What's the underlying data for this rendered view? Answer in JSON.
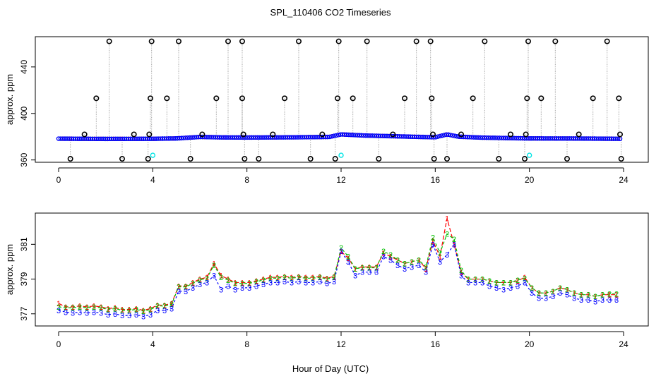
{
  "title": "SPL_110406  CO2 Timeseries",
  "xlabel": "Hour of Day (UTC)",
  "colors": {
    "s1": "#ff0000",
    "s2": "#00c000",
    "s3": "#0000ff",
    "cyan": "#00e5e5",
    "raw": "#000000",
    "drop": "#999999"
  },
  "chart_data": [
    {
      "type": "scatter",
      "name": "top-panel",
      "ylabel": "approx. ppm",
      "xlim": [
        0,
        24
      ],
      "ylim": [
        358,
        466
      ],
      "x_ticks": [
        "0",
        "4",
        "8",
        "12",
        "16",
        "20",
        "24"
      ],
      "y_ticks": [
        "360",
        "400",
        "440"
      ],
      "baseline": [
        [
          0,
          378.3
        ],
        [
          2,
          378.1
        ],
        [
          4,
          378.2
        ],
        [
          5,
          378.5
        ],
        [
          6,
          379.8
        ],
        [
          7,
          379.4
        ],
        [
          8,
          379.3
        ],
        [
          10,
          379.5
        ],
        [
          11.5,
          379.8
        ],
        [
          12,
          382
        ],
        [
          13,
          381
        ],
        [
          14,
          380.5
        ],
        [
          15,
          380
        ],
        [
          16,
          379.5
        ],
        [
          16.5,
          382
        ],
        [
          17,
          380
        ],
        [
          18,
          379.2
        ],
        [
          20,
          378.5
        ],
        [
          22,
          378.4
        ],
        [
          24,
          378.2
        ]
      ],
      "spikes": [
        {
          "x": 0.5,
          "y": 361
        },
        {
          "x": 1.1,
          "y": 382
        },
        {
          "x": 1.6,
          "y": 413
        },
        {
          "x": 2.15,
          "y": 462
        },
        {
          "x": 2.7,
          "y": 361
        },
        {
          "x": 3.2,
          "y": 382
        },
        {
          "x": 3.8,
          "y": 361
        },
        {
          "x": 3.85,
          "y": 382
        },
        {
          "x": 3.9,
          "y": 413
        },
        {
          "x": 3.95,
          "y": 462
        },
        {
          "x": 4.6,
          "y": 413
        },
        {
          "x": 5.1,
          "y": 462
        },
        {
          "x": 5.6,
          "y": 361
        },
        {
          "x": 6.1,
          "y": 382
        },
        {
          "x": 6.7,
          "y": 413
        },
        {
          "x": 7.2,
          "y": 462
        },
        {
          "x": 7.8,
          "y": 462
        },
        {
          "x": 7.8,
          "y": 413
        },
        {
          "x": 7.85,
          "y": 382
        },
        {
          "x": 7.9,
          "y": 361
        },
        {
          "x": 8.5,
          "y": 361
        },
        {
          "x": 9.1,
          "y": 382
        },
        {
          "x": 9.6,
          "y": 413
        },
        {
          "x": 10.2,
          "y": 462
        },
        {
          "x": 10.7,
          "y": 361
        },
        {
          "x": 11.2,
          "y": 382
        },
        {
          "x": 11.75,
          "y": 361
        },
        {
          "x": 11.85,
          "y": 413
        },
        {
          "x": 11.9,
          "y": 462
        },
        {
          "x": 12.5,
          "y": 413
        },
        {
          "x": 13.1,
          "y": 462
        },
        {
          "x": 13.6,
          "y": 361
        },
        {
          "x": 14.2,
          "y": 382
        },
        {
          "x": 14.7,
          "y": 413
        },
        {
          "x": 15.2,
          "y": 462
        },
        {
          "x": 15.8,
          "y": 462
        },
        {
          "x": 15.85,
          "y": 413
        },
        {
          "x": 15.9,
          "y": 382
        },
        {
          "x": 15.95,
          "y": 361
        },
        {
          "x": 16.5,
          "y": 361
        },
        {
          "x": 17.1,
          "y": 382
        },
        {
          "x": 17.6,
          "y": 413
        },
        {
          "x": 18.1,
          "y": 462
        },
        {
          "x": 18.7,
          "y": 361
        },
        {
          "x": 19.2,
          "y": 382
        },
        {
          "x": 19.8,
          "y": 361
        },
        {
          "x": 19.85,
          "y": 382
        },
        {
          "x": 19.9,
          "y": 413
        },
        {
          "x": 19.95,
          "y": 462
        },
        {
          "x": 20.5,
          "y": 413
        },
        {
          "x": 21.1,
          "y": 462
        },
        {
          "x": 21.6,
          "y": 361
        },
        {
          "x": 22.1,
          "y": 382
        },
        {
          "x": 22.7,
          "y": 413
        },
        {
          "x": 23.3,
          "y": 462
        },
        {
          "x": 23.8,
          "y": 413
        },
        {
          "x": 23.85,
          "y": 382
        },
        {
          "x": 23.9,
          "y": 361
        }
      ],
      "cyan_points": [
        {
          "x": 4.0,
          "y": 364
        },
        {
          "x": 12.0,
          "y": 364
        },
        {
          "x": 20.0,
          "y": 364
        }
      ]
    },
    {
      "type": "line",
      "name": "bottom-panel",
      "ylabel": "approx. ppm",
      "xlim": [
        0,
        24
      ],
      "ylim": [
        376.3,
        382.8
      ],
      "x_ticks": [
        "0",
        "4",
        "8",
        "12",
        "16",
        "20",
        "24"
      ],
      "y_ticks": [
        "377",
        "379",
        "381"
      ],
      "series": [
        {
          "name": "1",
          "label": "1",
          "x": [
            0,
            0.3,
            0.6,
            0.9,
            1.2,
            1.5,
            1.8,
            2.1,
            2.4,
            2.7,
            3.0,
            3.3,
            3.6,
            3.9,
            4.2,
            4.5,
            4.8,
            5.1,
            5.4,
            5.7,
            6.0,
            6.3,
            6.6,
            6.9,
            7.2,
            7.5,
            7.8,
            8.1,
            8.4,
            8.7,
            9.0,
            9.3,
            9.6,
            9.9,
            10.2,
            10.5,
            10.8,
            11.1,
            11.4,
            11.7,
            12.0,
            12.3,
            12.6,
            12.9,
            13.2,
            13.5,
            13.8,
            14.1,
            14.4,
            14.7,
            15.0,
            15.3,
            15.6,
            15.9,
            16.2,
            16.5,
            16.8,
            17.1,
            17.4,
            17.7,
            18.0,
            18.3,
            18.6,
            18.9,
            19.2,
            19.5,
            19.8,
            20.1,
            20.4,
            20.7,
            21.0,
            21.3,
            21.6,
            21.9,
            22.2,
            22.5,
            22.8,
            23.1,
            23.4,
            23.7
          ],
          "values": [
            377.6,
            377.4,
            377.4,
            377.45,
            377.4,
            377.45,
            377.4,
            377.3,
            377.35,
            377.25,
            377.25,
            377.3,
            377.2,
            377.3,
            377.5,
            377.5,
            377.6,
            378.6,
            378.6,
            378.8,
            379.0,
            379.1,
            379.9,
            379.2,
            379.0,
            378.8,
            378.8,
            378.8,
            378.9,
            379.0,
            379.1,
            379.1,
            379.15,
            379.1,
            379.15,
            379.1,
            379.1,
            379.15,
            379.05,
            379.15,
            380.6,
            380.2,
            379.6,
            379.7,
            379.7,
            379.7,
            380.5,
            380.3,
            380.1,
            379.9,
            380.0,
            380.1,
            379.6,
            381.2,
            380.3,
            382.5,
            381.0,
            379.4,
            379.0,
            379.0,
            379.0,
            378.9,
            378.8,
            378.8,
            378.8,
            378.9,
            379.1,
            378.5,
            378.2,
            378.2,
            378.3,
            378.5,
            378.4,
            378.2,
            378.1,
            378.1,
            378.0,
            378.1,
            378.1,
            378.1
          ]
        },
        {
          "name": "2",
          "label": "2",
          "x": [
            0,
            0.3,
            0.6,
            0.9,
            1.2,
            1.5,
            1.8,
            2.1,
            2.4,
            2.7,
            3.0,
            3.3,
            3.6,
            3.9,
            4.2,
            4.5,
            4.8,
            5.1,
            5.4,
            5.7,
            6.0,
            6.3,
            6.6,
            6.9,
            7.2,
            7.5,
            7.8,
            8.1,
            8.4,
            8.7,
            9.0,
            9.3,
            9.6,
            9.9,
            10.2,
            10.5,
            10.8,
            11.1,
            11.4,
            11.7,
            12.0,
            12.3,
            12.6,
            12.9,
            13.2,
            13.5,
            13.8,
            14.1,
            14.4,
            14.7,
            15.0,
            15.3,
            15.6,
            15.9,
            16.2,
            16.5,
            16.8,
            17.1,
            17.4,
            17.7,
            18.0,
            18.3,
            18.6,
            18.9,
            19.2,
            19.5,
            19.8,
            20.1,
            20.4,
            20.7,
            21.0,
            21.3,
            21.6,
            21.9,
            22.2,
            22.5,
            22.8,
            23.1,
            23.4,
            23.7
          ],
          "values": [
            377.4,
            377.35,
            377.35,
            377.4,
            377.35,
            377.4,
            377.35,
            377.25,
            377.3,
            377.2,
            377.2,
            377.25,
            377.15,
            377.25,
            377.45,
            377.45,
            377.55,
            378.55,
            378.55,
            378.75,
            378.95,
            379.05,
            379.8,
            379.1,
            378.95,
            378.75,
            378.75,
            378.75,
            378.85,
            378.95,
            379.05,
            379.05,
            379.1,
            379.05,
            379.1,
            379.05,
            379.05,
            379.1,
            379.0,
            379.1,
            380.8,
            380.3,
            379.6,
            379.65,
            379.65,
            379.65,
            380.6,
            380.4,
            380.1,
            379.9,
            380.0,
            380.1,
            379.7,
            381.4,
            380.5,
            381.6,
            381.3,
            379.5,
            379.0,
            379.0,
            379.0,
            378.9,
            378.8,
            378.8,
            378.8,
            378.95,
            379.05,
            378.5,
            378.2,
            378.2,
            378.3,
            378.5,
            378.4,
            378.2,
            378.1,
            378.1,
            378.0,
            378.1,
            378.15,
            378.15
          ]
        },
        {
          "name": "3",
          "label": "3",
          "x": [
            0,
            0.3,
            0.6,
            0.9,
            1.2,
            1.5,
            1.8,
            2.1,
            2.4,
            2.7,
            3.0,
            3.3,
            3.6,
            3.9,
            4.2,
            4.5,
            4.8,
            5.1,
            5.4,
            5.7,
            6.0,
            6.3,
            6.6,
            6.9,
            7.2,
            7.5,
            7.8,
            8.1,
            8.4,
            8.7,
            9.0,
            9.3,
            9.6,
            9.9,
            10.2,
            10.5,
            10.8,
            11.1,
            11.4,
            11.7,
            12.0,
            12.3,
            12.6,
            12.9,
            13.2,
            13.5,
            13.8,
            14.1,
            14.4,
            14.7,
            15.0,
            15.3,
            15.6,
            15.9,
            16.2,
            16.5,
            16.8,
            17.1,
            17.4,
            17.7,
            18.0,
            18.3,
            18.6,
            18.9,
            19.2,
            19.5,
            19.8,
            20.1,
            20.4,
            20.7,
            21.0,
            21.3,
            21.6,
            21.9,
            22.2,
            22.5,
            22.8,
            23.1,
            23.4,
            23.7
          ],
          "values": [
            377.2,
            377.1,
            377.05,
            377.1,
            377.05,
            377.1,
            377.05,
            376.95,
            377.0,
            376.9,
            376.9,
            376.95,
            376.85,
            376.95,
            377.2,
            377.2,
            377.3,
            378.3,
            378.3,
            378.5,
            378.7,
            378.8,
            379.2,
            378.4,
            378.6,
            378.4,
            378.5,
            378.5,
            378.6,
            378.7,
            378.8,
            378.8,
            378.85,
            378.8,
            378.85,
            378.8,
            378.8,
            378.85,
            378.75,
            378.85,
            380.6,
            380.0,
            379.2,
            379.4,
            379.4,
            379.4,
            380.3,
            380.1,
            379.8,
            379.6,
            379.7,
            379.8,
            379.4,
            381.0,
            380.0,
            380.4,
            381.0,
            379.2,
            378.8,
            378.8,
            378.8,
            378.6,
            378.5,
            378.4,
            378.5,
            378.6,
            378.8,
            378.2,
            377.9,
            377.9,
            378.0,
            378.2,
            378.1,
            377.9,
            377.8,
            377.8,
            377.7,
            377.8,
            377.8,
            377.8
          ]
        }
      ]
    }
  ]
}
